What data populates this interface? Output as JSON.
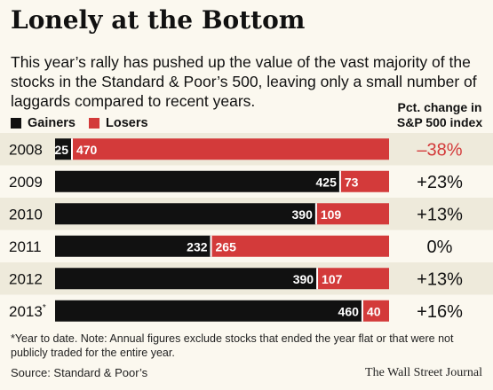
{
  "title": "Lonely at the Bottom",
  "subtitle": "This year’s rally has pushed up the value of the vast majority of the stocks in the Standard & Poor’s 500, leaving only a small number of laggards compared to recent years.",
  "legend": {
    "gainers": "Gainers",
    "losers": "Losers"
  },
  "pct_header": "Pct. change in S&P 500 index",
  "footnote": "*Year to date.  Note: Annual figures exclude stocks that ended the year flat or that were not publicly traded for the entire year.",
  "source": "Source: Standard & Poor’s",
  "credit": "The Wall Street Journal",
  "colors": {
    "gainers": "#111111",
    "losers": "#d33a3a",
    "band": "#eeeadb",
    "negative_pct": "#d33a3a",
    "text": "#111111"
  },
  "chart_data": {
    "type": "bar",
    "orientation": "horizontal",
    "stacked": true,
    "normalized": true,
    "categories": [
      "2008",
      "2009",
      "2010",
      "2011",
      "2012",
      "2013*"
    ],
    "series": [
      {
        "name": "Gainers",
        "values": [
          25,
          425,
          390,
          232,
          390,
          460
        ]
      },
      {
        "name": "Losers",
        "values": [
          470,
          73,
          109,
          265,
          107,
          40
        ]
      }
    ],
    "pct_change_labels": [
      "–38%",
      "+23%",
      "+13%",
      "0%",
      "+13%",
      "+16%"
    ],
    "pct_change_values": [
      -38,
      23,
      13,
      0,
      13,
      16
    ],
    "legend_position": "top-left",
    "grid": false
  }
}
